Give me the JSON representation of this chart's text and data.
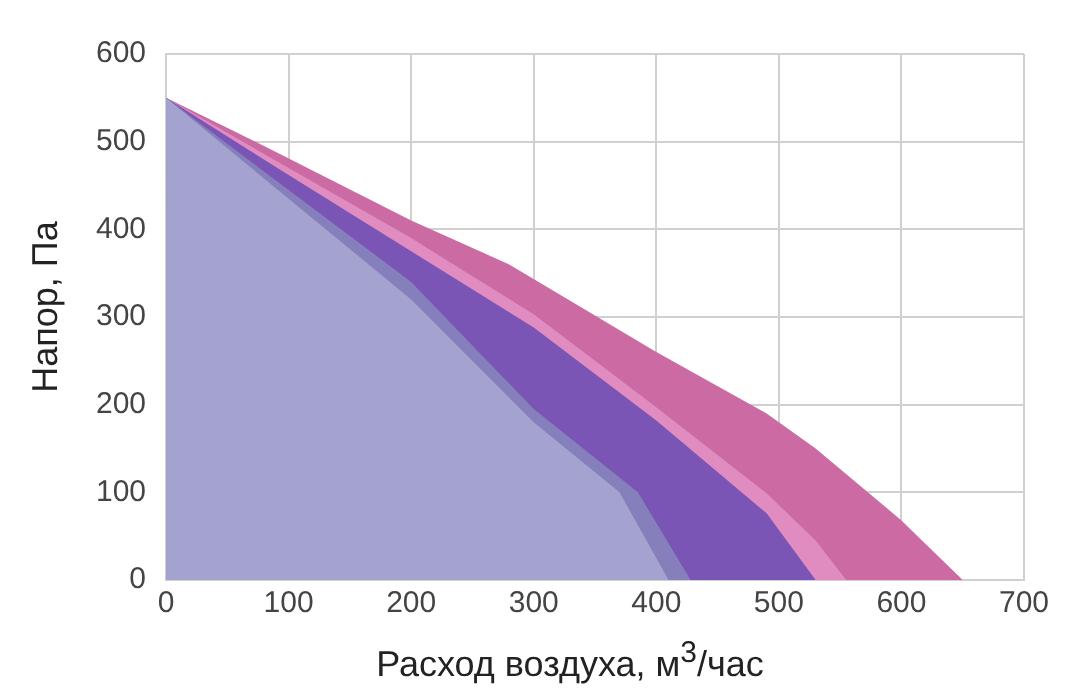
{
  "chart_data": {
    "type": "area",
    "xlabel": "Расход воздуха, м$^{3}$/час",
    "ylabel": "Напор, Па",
    "xlim": [
      0,
      700
    ],
    "xticks": [
      0,
      100,
      200,
      300,
      400,
      500,
      600,
      700
    ],
    "ylim": [
      0,
      600
    ],
    "yticks": [
      0,
      100,
      200,
      300,
      400,
      500,
      600
    ],
    "grid": true,
    "marker": "none",
    "series": [
      {
        "color": "#cc6aa3",
        "x": [
          0,
          80,
          200,
          280,
          400,
          490,
          530,
          600,
          650
        ],
        "values": [
          550,
          495,
          410,
          360,
          260,
          190,
          150,
          68,
          0
        ]
      },
      {
        "color": "#e08cc0",
        "x": [
          0,
          100,
          200,
          300,
          400,
          490,
          530,
          555
        ],
        "values": [
          550,
          470,
          390,
          303,
          197,
          99,
          45,
          0
        ]
      },
      {
        "color": "#7a55b5",
        "x": [
          0,
          100,
          200,
          300,
          400,
          490,
          530
        ],
        "values": [
          550,
          462,
          375,
          288,
          182,
          76,
          0
        ]
      },
      {
        "color": "#8580bb",
        "x": [
          0,
          100,
          200,
          300,
          385,
          428
        ],
        "values": [
          550,
          445,
          340,
          195,
          100,
          0
        ]
      },
      {
        "color": "#a4a2cf",
        "x": [
          0,
          100,
          200,
          300,
          370,
          410
        ],
        "values": [
          550,
          435,
          320,
          180,
          100,
          0
        ]
      }
    ]
  }
}
